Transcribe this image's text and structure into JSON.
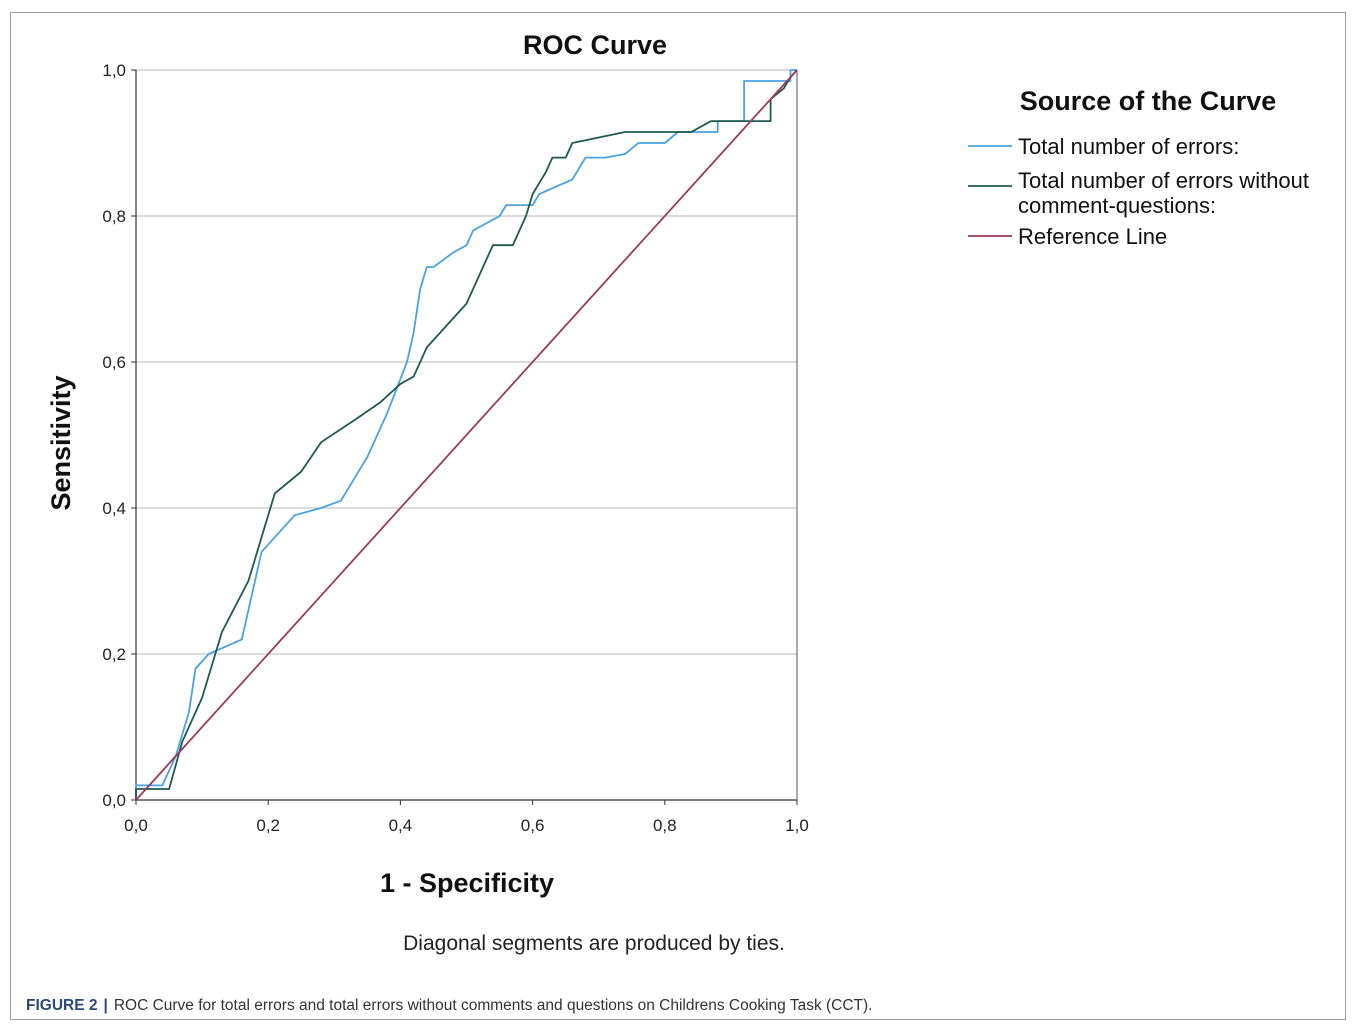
{
  "chart_data": {
    "type": "line",
    "title": "ROC Curve",
    "xlabel": "1 - Specificity",
    "ylabel": "Sensitivity",
    "xlim": [
      0,
      1
    ],
    "ylim": [
      0,
      1
    ],
    "x_ticks": [
      "0,0",
      "0,2",
      "0,4",
      "0,6",
      "0,8",
      "1,0"
    ],
    "y_ticks": [
      "0,0",
      "0,2",
      "0,4",
      "0,6",
      "0,8",
      "1,0"
    ],
    "grid": "horizontal",
    "legend_title": "Source of the Curve",
    "legend_placement": "right",
    "note": "Diagonal segments are produced by ties.",
    "series": [
      {
        "name": "Total number of errors:",
        "color": "#4aa3df",
        "points": [
          [
            0,
            0
          ],
          [
            0,
            0.02
          ],
          [
            0.04,
            0.02
          ],
          [
            0.06,
            0.06
          ],
          [
            0.08,
            0.12
          ],
          [
            0.09,
            0.18
          ],
          [
            0.11,
            0.2
          ],
          [
            0.16,
            0.22
          ],
          [
            0.19,
            0.34
          ],
          [
            0.24,
            0.39
          ],
          [
            0.28,
            0.4
          ],
          [
            0.31,
            0.41
          ],
          [
            0.33,
            0.44
          ],
          [
            0.35,
            0.47
          ],
          [
            0.38,
            0.53
          ],
          [
            0.41,
            0.6
          ],
          [
            0.42,
            0.64
          ],
          [
            0.43,
            0.7
          ],
          [
            0.44,
            0.73
          ],
          [
            0.45,
            0.73
          ],
          [
            0.48,
            0.75
          ],
          [
            0.5,
            0.76
          ],
          [
            0.51,
            0.78
          ],
          [
            0.55,
            0.8
          ],
          [
            0.56,
            0.815
          ],
          [
            0.6,
            0.815
          ],
          [
            0.61,
            0.83
          ],
          [
            0.66,
            0.85
          ],
          [
            0.68,
            0.88
          ],
          [
            0.71,
            0.88
          ],
          [
            0.74,
            0.885
          ],
          [
            0.76,
            0.9
          ],
          [
            0.8,
            0.9
          ],
          [
            0.82,
            0.915
          ],
          [
            0.88,
            0.915
          ],
          [
            0.88,
            0.93
          ],
          [
            0.92,
            0.93
          ],
          [
            0.92,
            0.985
          ],
          [
            0.99,
            0.985
          ],
          [
            0.99,
            1.0
          ],
          [
            1.0,
            1.0
          ]
        ]
      },
      {
        "name": "Total number of errors without comment-questions:",
        "color": "#1e5a4e",
        "points": [
          [
            0,
            0
          ],
          [
            0,
            0.015
          ],
          [
            0.05,
            0.015
          ],
          [
            0.07,
            0.08
          ],
          [
            0.1,
            0.14
          ],
          [
            0.13,
            0.23
          ],
          [
            0.17,
            0.3
          ],
          [
            0.21,
            0.42
          ],
          [
            0.25,
            0.45
          ],
          [
            0.28,
            0.49
          ],
          [
            0.33,
            0.52
          ],
          [
            0.37,
            0.545
          ],
          [
            0.4,
            0.57
          ],
          [
            0.42,
            0.58
          ],
          [
            0.44,
            0.62
          ],
          [
            0.5,
            0.68
          ],
          [
            0.53,
            0.74
          ],
          [
            0.54,
            0.76
          ],
          [
            0.57,
            0.76
          ],
          [
            0.59,
            0.8
          ],
          [
            0.6,
            0.83
          ],
          [
            0.62,
            0.86
          ],
          [
            0.63,
            0.88
          ],
          [
            0.65,
            0.88
          ],
          [
            0.66,
            0.9
          ],
          [
            0.74,
            0.915
          ],
          [
            0.84,
            0.915
          ],
          [
            0.87,
            0.93
          ],
          [
            0.96,
            0.93
          ],
          [
            0.96,
            0.96
          ],
          [
            0.98,
            0.975
          ],
          [
            0.99,
            0.99
          ],
          [
            1.0,
            1.0
          ]
        ]
      },
      {
        "name": "Reference Line",
        "color": "#9b3a55",
        "points": [
          [
            0,
            0
          ],
          [
            1,
            1
          ]
        ]
      }
    ]
  },
  "caption": {
    "label": "FIGURE 2",
    "separator": "|",
    "text": "ROC Curve for total errors and total errors without comments and questions on Childrens Cooking Task (CCT)."
  }
}
